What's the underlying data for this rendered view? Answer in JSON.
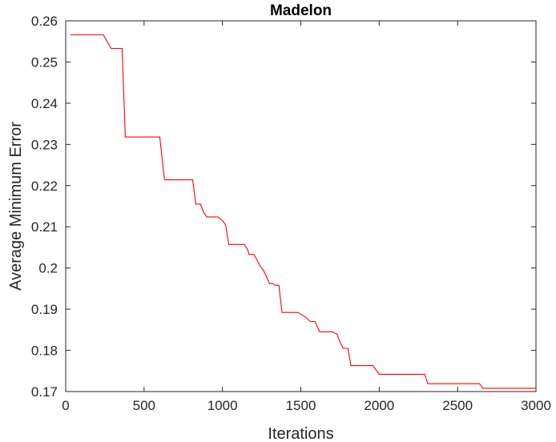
{
  "chart_data": {
    "type": "line",
    "title": "Madelon",
    "xlabel": "Iterations",
    "ylabel": "Average Minimum Error",
    "xlim": [
      0,
      3000
    ],
    "ylim": [
      0.17,
      0.26
    ],
    "xticks": [
      0,
      500,
      1000,
      1500,
      2000,
      2500,
      3000
    ],
    "xtick_labels": [
      "0",
      "500",
      "1000",
      "1500",
      "2000",
      "2500",
      "3000"
    ],
    "yticks": [
      0.17,
      0.18,
      0.19,
      0.2,
      0.21,
      0.22,
      0.23,
      0.24,
      0.25,
      0.26
    ],
    "ytick_labels": [
      "0.17",
      "0.18",
      "0.19",
      "0.2",
      "0.21",
      "0.22",
      "0.23",
      "0.24",
      "0.25",
      "0.26"
    ],
    "grid": false,
    "line_color": "#ff0000",
    "series": [
      {
        "x": [
          30,
          240,
          290,
          360,
          380,
          600,
          630,
          810,
          830,
          860,
          880,
          900,
          970,
          1000,
          1020,
          1040,
          1140,
          1160,
          1170,
          1200,
          1220,
          1240,
          1260,
          1280,
          1300,
          1320,
          1340,
          1360,
          1380,
          1480,
          1530,
          1560,
          1590,
          1620,
          1700,
          1730,
          1750,
          1770,
          1800,
          1820,
          1960,
          2000,
          2290,
          2310,
          2640,
          2660,
          3000
        ],
        "y": [
          0.2566,
          0.2566,
          0.2533,
          0.2533,
          0.2318,
          0.2318,
          0.2214,
          0.2214,
          0.2155,
          0.2155,
          0.2135,
          0.2124,
          0.2124,
          0.2115,
          0.2105,
          0.2057,
          0.2057,
          0.2045,
          0.2033,
          0.2033,
          0.202,
          0.2005,
          0.1995,
          0.198,
          0.1962,
          0.1962,
          0.1958,
          0.1958,
          0.1892,
          0.1892,
          0.1881,
          0.187,
          0.187,
          0.1845,
          0.1845,
          0.184,
          0.182,
          0.1805,
          0.1805,
          0.1763,
          0.1763,
          0.1742,
          0.1742,
          0.1719,
          0.1719,
          0.1708,
          0.1708
        ]
      }
    ]
  }
}
